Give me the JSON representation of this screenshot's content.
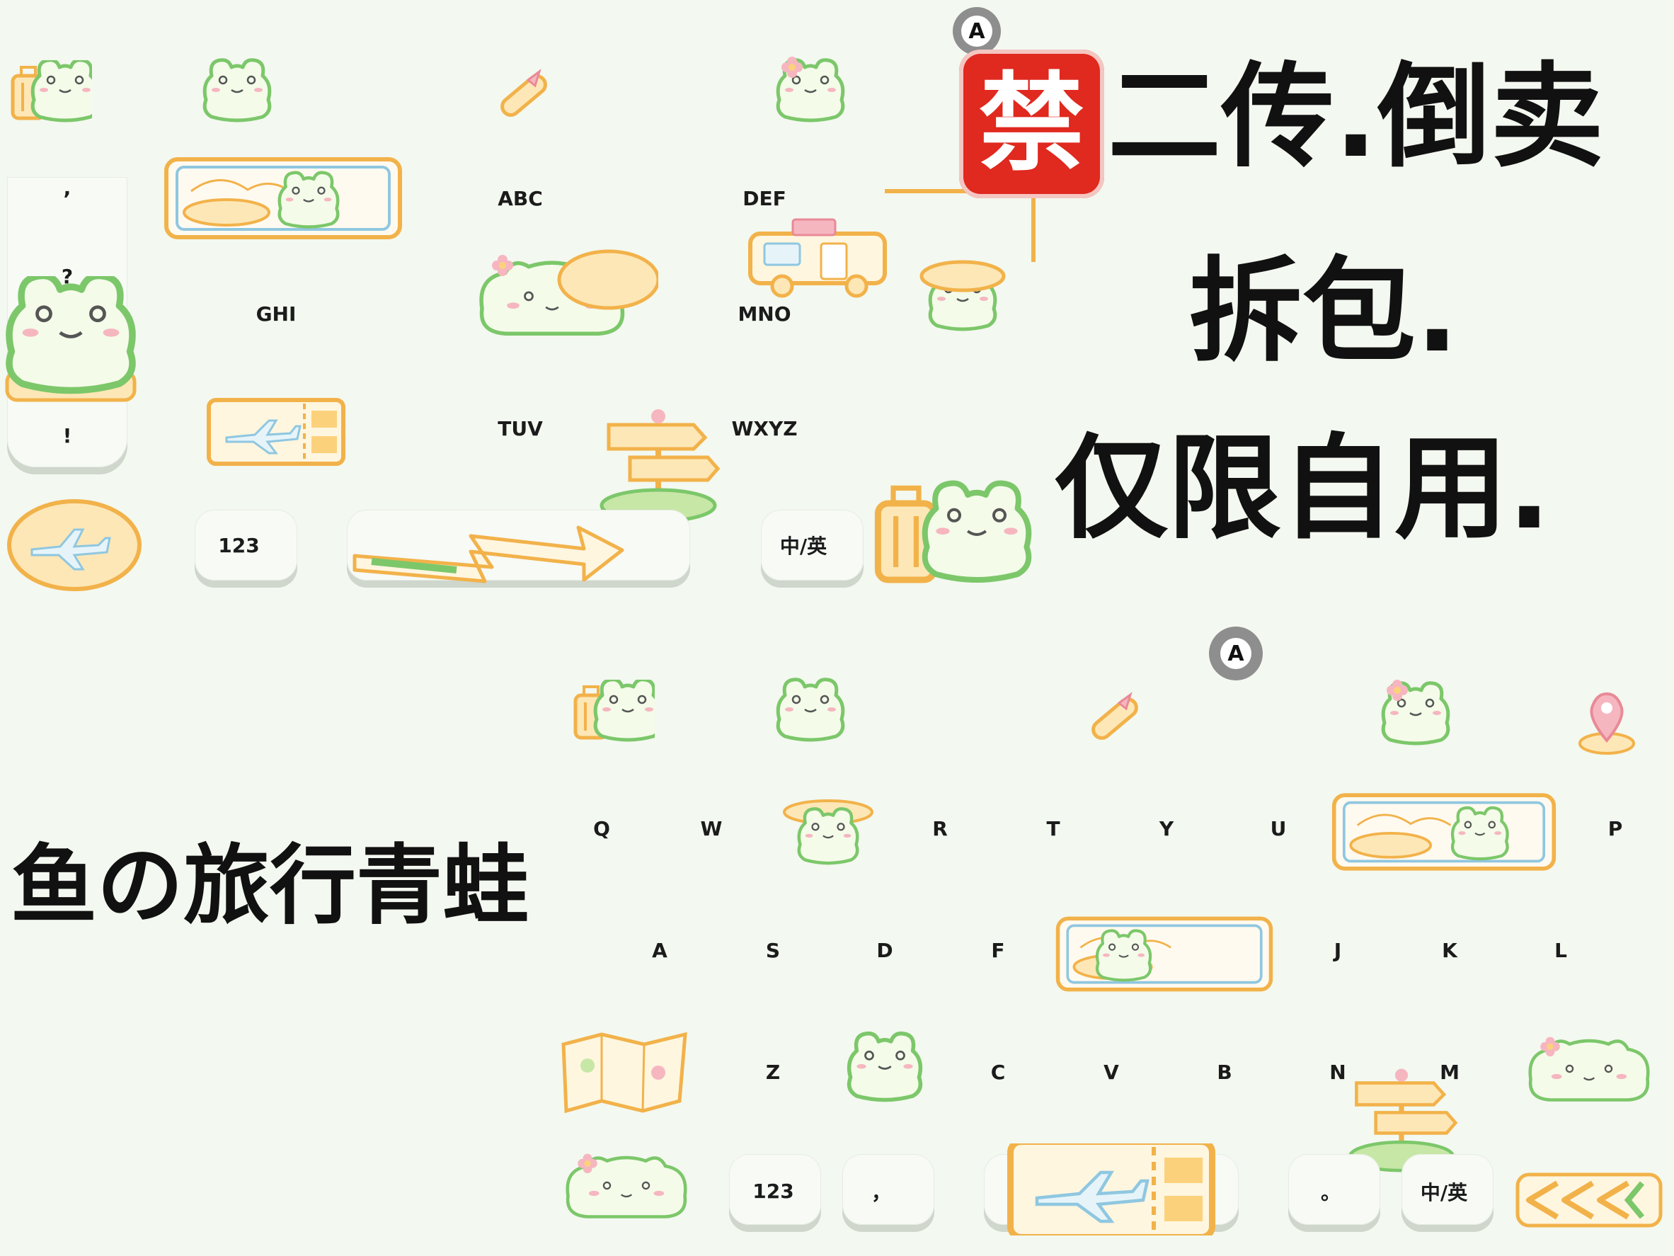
{
  "warning": {
    "badge": "禁",
    "line1": "二传.倒卖",
    "line2": "拆包.",
    "line3": "仅限自用."
  },
  "theme_title": "鱼の旅行青蛙",
  "avatar_letter": "A",
  "t9": {
    "side_symbols": [
      ",",
      "?",
      "!"
    ],
    "keys": [
      "ABC",
      "DEF",
      "GHI",
      "MNO",
      "TUV",
      "WXYZ"
    ],
    "bottom": {
      "num": "123",
      "lang": "中/英"
    }
  },
  "qwerty": {
    "row1": [
      "Q",
      "W",
      "R",
      "T",
      "Y",
      "U",
      "P"
    ],
    "row2": [
      "A",
      "S",
      "D",
      "F",
      "J",
      "K",
      "L"
    ],
    "row3": [
      "Z",
      "C",
      "V",
      "B",
      "N",
      "M"
    ],
    "bottom": {
      "num": "123",
      "comma": "，",
      "period": "。",
      "lang": "中/英"
    }
  },
  "colors": {
    "frog_outline": "#7cc76a",
    "frog_fill": "#f4fbe9",
    "accent_orange": "#f2b24a",
    "badge_red": "#e0291f",
    "background": "#f3f8f0"
  }
}
